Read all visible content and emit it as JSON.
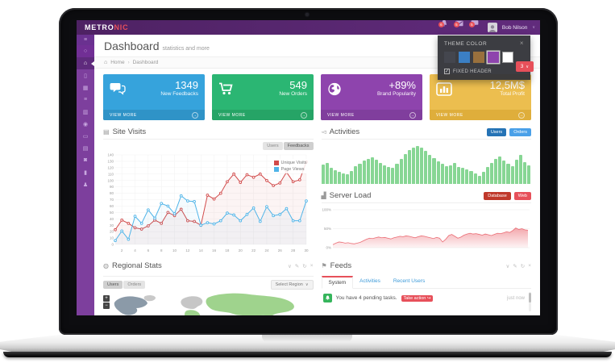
{
  "brand": {
    "primary": "METRO",
    "accent": "NIC"
  },
  "topbar": {
    "notifications": [
      {
        "icon": "bell",
        "badge": "6"
      },
      {
        "icon": "envelope",
        "badge": "5"
      },
      {
        "icon": "chat",
        "badge": "5"
      }
    ],
    "user": {
      "name": "Bob Nilson"
    }
  },
  "sidebar": {
    "items": [
      {
        "name": "search",
        "dark": true
      },
      {
        "name": "home",
        "active": true
      },
      {
        "name": "bookmark"
      },
      {
        "name": "table"
      },
      {
        "name": "list"
      },
      {
        "name": "columns"
      },
      {
        "name": "location"
      },
      {
        "name": "image"
      },
      {
        "name": "calendar"
      },
      {
        "name": "camera"
      },
      {
        "name": "briefcase"
      },
      {
        "name": "user"
      }
    ]
  },
  "page": {
    "title": "Dashboard",
    "subtitle": "statistics and more",
    "breadcrumb_home": "Home",
    "breadcrumb_current": "Dashboard",
    "range_button": "3"
  },
  "tiles": [
    {
      "value": "1349",
      "label": "New Feedbacks",
      "action": "VIEW MORE",
      "icon": "chat",
      "bg": "#36a3dc",
      "footer_bg": "#2f93c7"
    },
    {
      "value": "549",
      "label": "New Orders",
      "action": "VIEW MORE",
      "icon": "cart",
      "bg": "#2bb673",
      "footer_bg": "#26a466"
    },
    {
      "value": "+89%",
      "label": "Brand Popularity",
      "action": "VIEW MORE",
      "icon": "globe",
      "bg": "#8e44ad",
      "footer_bg": "#803e9d"
    },
    {
      "value": "12,5M$",
      "label": "Total Profit",
      "action": "VIEW MORE",
      "icon": "bar-chart",
      "bg": "#ecbe4f",
      "footer_bg": "#dfae3b"
    }
  ],
  "theme_panel": {
    "title": "THEME COLOR",
    "colors": [
      {
        "name": "dark",
        "hex": "#44464e"
      },
      {
        "name": "blue",
        "hex": "#3b7fc4"
      },
      {
        "name": "brown",
        "hex": "#99703d"
      },
      {
        "name": "purple",
        "hex": "#8e44ad",
        "selected": true
      },
      {
        "name": "white",
        "hex": "#ffffff"
      }
    ],
    "checkbox_label": "FIXED HEADER",
    "checked": true
  },
  "panels": {
    "site_visits": {
      "title": "Site Visits",
      "buttons": [
        "Users",
        "Feedbacks"
      ],
      "active_button": "Feedbacks"
    },
    "activities": {
      "title": "Activities",
      "buttons": [
        "Users",
        "Orders"
      ],
      "active_button": "Users"
    },
    "server_load": {
      "title": "Server Load",
      "buttons": [
        "Database",
        "Web"
      ],
      "active_button": "Database"
    },
    "regional_stats": {
      "title": "Regional Stats",
      "buttons": [
        "Users",
        "Orders"
      ],
      "active_button": "Users",
      "select_label": "Select Region"
    },
    "feeds": {
      "title": "Feeds",
      "tabs": [
        "System",
        "Activities",
        "Recent Users"
      ],
      "active_tab": "System",
      "items": [
        {
          "text": "You have 4 pending tasks.",
          "action_label": "Take action",
          "time": "just now"
        }
      ]
    }
  },
  "colors": {
    "accent_red": "#e7505a",
    "header_purple": "#5a2873",
    "sidebar_purple": "#7d3f9d",
    "activity_green": "#87d694"
  },
  "chart_data": [
    {
      "id": "site-visits",
      "type": "line",
      "title": "Site Visits",
      "x": [
        1,
        2,
        3,
        4,
        5,
        6,
        7,
        8,
        9,
        10,
        11,
        12,
        13,
        14,
        15,
        16,
        17,
        18,
        19,
        20,
        21,
        22,
        23,
        24,
        25,
        26,
        27,
        28,
        29,
        30
      ],
      "series": [
        {
          "name": "Unique Visits",
          "color": "#d14a4a",
          "values": [
            23,
            38,
            33,
            26,
            24,
            29,
            38,
            33,
            50,
            45,
            55,
            37,
            36,
            30,
            77,
            71,
            80,
            98,
            110,
            97,
            109,
            105,
            110,
            100,
            92,
            96,
            113,
            98,
            101,
            129
          ]
        },
        {
          "name": "Page Views",
          "color": "#4fb4e8",
          "values": [
            6,
            21,
            8,
            44,
            33,
            54,
            41,
            64,
            60,
            48,
            76,
            68,
            67,
            30,
            34,
            32,
            37,
            49,
            46,
            37,
            47,
            57,
            36,
            59,
            45,
            47,
            56,
            37,
            37,
            68
          ]
        }
      ],
      "ylim": [
        0,
        140
      ],
      "ytick_step": 10,
      "xtick_step": 2,
      "grid": true,
      "legend_position": "top-right"
    },
    {
      "id": "activities",
      "type": "bar",
      "title": "Activities",
      "color": "#87d694",
      "ylim": [
        0,
        100
      ],
      "values": [
        48,
        52,
        40,
        34,
        30,
        26,
        24,
        32,
        44,
        50,
        58,
        62,
        66,
        60,
        52,
        46,
        42,
        40,
        50,
        62,
        74,
        84,
        90,
        94,
        90,
        82,
        72,
        64,
        56,
        50,
        44,
        46,
        52,
        42,
        40,
        36,
        32,
        26,
        20,
        30,
        42,
        52,
        62,
        68,
        58,
        50,
        44,
        60,
        72,
        55,
        46
      ]
    },
    {
      "id": "server-load",
      "type": "area",
      "title": "Server Load",
      "color": "#e7505a",
      "ylim": [
        0,
        100
      ],
      "yticks": [
        "100%",
        "50%",
        "0%"
      ],
      "values": [
        8,
        12,
        15,
        14,
        12,
        13,
        11,
        10,
        12,
        14,
        18,
        22,
        25,
        24,
        26,
        28,
        26,
        27,
        25,
        23,
        26,
        28,
        30,
        29,
        31,
        30,
        28,
        26,
        29,
        31,
        30,
        28,
        26,
        24,
        27,
        25,
        15,
        22,
        32,
        35,
        30,
        25,
        28,
        33,
        36,
        38,
        36,
        37,
        35,
        33,
        36,
        34,
        32,
        35,
        38,
        37,
        39,
        42,
        40,
        45,
        52,
        48,
        50,
        47,
        46
      ]
    }
  ]
}
